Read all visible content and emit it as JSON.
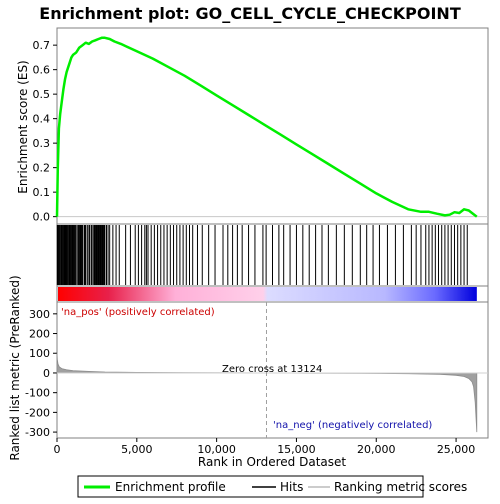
{
  "chart_data": {
    "type": "line",
    "title": "Enrichment plot: GO_CELL_CYCLE_CHECKPOINT",
    "top_panel": {
      "ylabel": "Enrichment score (ES)",
      "ylim": [
        -0.03,
        0.77
      ],
      "yticks": [
        "0.0",
        "0.1",
        "0.2",
        "0.3",
        "0.4",
        "0.5",
        "0.6",
        "0.7"
      ],
      "ytick_values": [
        0.0,
        0.1,
        0.2,
        0.3,
        0.4,
        0.5,
        0.6,
        0.7
      ],
      "series": [
        {
          "name": "Enrichment profile",
          "color": "#00ee00",
          "x": [
            0,
            50,
            120,
            200,
            300,
            400,
            500,
            600,
            700,
            800,
            900,
            1000,
            1200,
            1400,
            1600,
            1800,
            2000,
            2200,
            2400,
            2600,
            2800,
            3000,
            3300,
            3600,
            4000,
            5000,
            6000,
            7000,
            8000,
            9000,
            10000,
            11000,
            12000,
            13000,
            14000,
            15000,
            16000,
            17000,
            18000,
            19000,
            20000,
            21000,
            22000,
            22800,
            23300,
            23800,
            24300,
            24600,
            24900,
            25200,
            25500,
            25800,
            26100,
            26300
          ],
          "y": [
            0.0,
            0.2,
            0.36,
            0.42,
            0.47,
            0.52,
            0.56,
            0.59,
            0.61,
            0.63,
            0.65,
            0.66,
            0.67,
            0.69,
            0.7,
            0.71,
            0.705,
            0.715,
            0.72,
            0.725,
            0.73,
            0.73,
            0.725,
            0.715,
            0.705,
            0.675,
            0.645,
            0.61,
            0.575,
            0.535,
            0.495,
            0.455,
            0.415,
            0.375,
            0.335,
            0.295,
            0.255,
            0.215,
            0.175,
            0.135,
            0.095,
            0.06,
            0.03,
            0.02,
            0.02,
            0.012,
            0.005,
            0.008,
            0.018,
            0.015,
            0.03,
            0.025,
            0.01,
            0.0
          ]
        }
      ]
    },
    "hits_panel": {
      "color": "#000000",
      "hit_positions": [
        20,
        60,
        110,
        150,
        200,
        260,
        300,
        350,
        400,
        450,
        480,
        520,
        560,
        600,
        650,
        700,
        760,
        800,
        850,
        900,
        950,
        1000,
        1050,
        1100,
        1150,
        1200,
        1300,
        1350,
        1400,
        1450,
        1500,
        1550,
        1600,
        1700,
        1750,
        1800,
        1900,
        2000,
        2050,
        2150,
        2200,
        2300,
        2350,
        2400,
        2450,
        2500,
        2550,
        2600,
        2650,
        2700,
        2750,
        2800,
        2850,
        2900,
        2950,
        3000,
        3100,
        3200,
        3300,
        3500,
        3700,
        3900,
        4300,
        4600,
        4900,
        5100,
        5300,
        5500,
        5600,
        5700,
        5900,
        6100,
        6300,
        6500,
        6700,
        6900,
        7100,
        7300,
        7500,
        7700,
        7900,
        8100,
        8300,
        8500,
        8800,
        9100,
        9500,
        9900,
        10400,
        10700,
        11000,
        11300,
        11600,
        12000,
        12400,
        12900,
        13100,
        13500,
        13900,
        14200,
        14600,
        15000,
        15400,
        15800,
        16200,
        16600,
        17000,
        17500,
        18000,
        18500,
        19000,
        19400,
        19800,
        20200,
        20700,
        21200,
        21700,
        22200,
        22500,
        22800,
        23100,
        23300,
        23500,
        23700,
        23900,
        24100,
        24300,
        24500,
        24700,
        24900,
        25100,
        25300,
        25500,
        25700
      ]
    },
    "ranked_panel": {
      "ylabel": "Ranked list metric (PreRanked)",
      "ylim": [
        -330,
        360
      ],
      "yticks": [
        "300",
        "200",
        "100",
        "0",
        "-100",
        "-200",
        "-300"
      ],
      "ytick_values": [
        300,
        200,
        100,
        0,
        -100,
        -200,
        -300
      ],
      "pos_label": "'na_pos' (positively correlated)",
      "neg_label": "'na_neg' (negatively correlated)",
      "zero_cross_label": "Zero cross at 13124",
      "zero_cross": 13124,
      "profile_x": [
        0,
        20,
        60,
        150,
        300,
        600,
        1000,
        2000,
        3000,
        5000,
        8000,
        11000,
        13124,
        16000,
        19000,
        22000,
        24000,
        25000,
        25500,
        25800,
        26000,
        26100,
        26200,
        26300
      ],
      "profile_y": [
        100,
        70,
        45,
        30,
        22,
        16,
        12,
        8,
        5,
        3,
        2,
        1,
        0,
        -1,
        -2,
        -4,
        -7,
        -12,
        -18,
        -28,
        -45,
        -70,
        -150,
        -300
      ]
    },
    "xlabel": "Rank in Ordered Dataset",
    "xlim": [
      0,
      27000
    ],
    "xticks": [
      "0",
      "5,000",
      "10,000",
      "15,000",
      "20,000",
      "25,000"
    ],
    "xtick_values": [
      0,
      5000,
      10000,
      15000,
      20000,
      25000
    ],
    "list_length": 26300,
    "legend": {
      "placement": "bottom",
      "items": [
        {
          "label": "Enrichment profile",
          "color": "#00ee00"
        },
        {
          "label": "Hits",
          "color": "#000000"
        },
        {
          "label": "Ranking metric scores",
          "color": "#bbbbbb"
        }
      ]
    },
    "colors": {
      "pos_text": "#cc0000",
      "neg_text": "#1111aa",
      "ranked_fill": "#a0a0a0",
      "gradient_red": "#ff0000",
      "gradient_pink": "#ffc8e6",
      "gradient_lav": "#d6d6ff",
      "gradient_blue": "#0000dd"
    }
  }
}
